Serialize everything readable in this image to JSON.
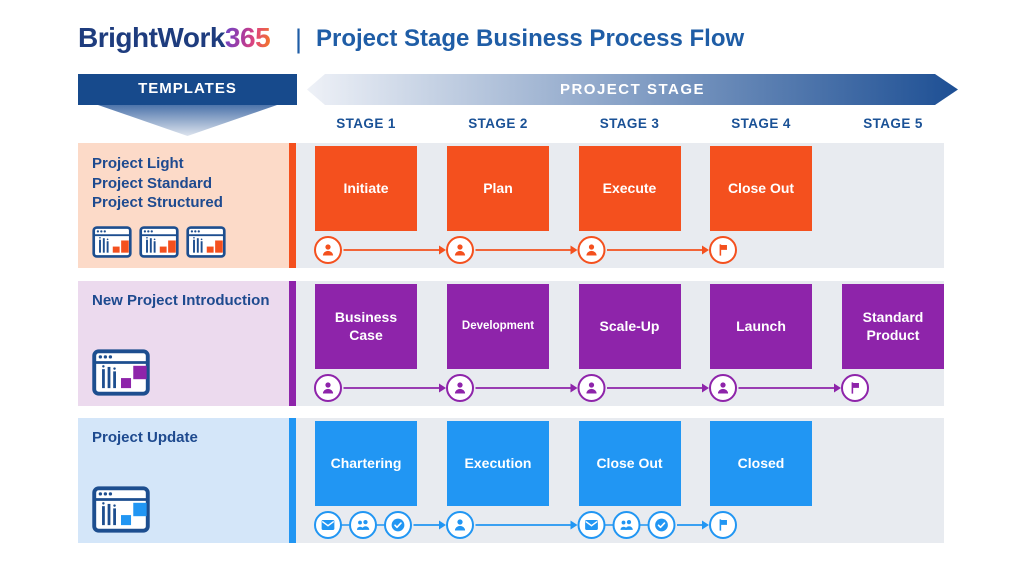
{
  "header": {
    "logo_text": "BrightWork",
    "logo_suffix": "365",
    "divider": "|",
    "title": "Project Stage Business Process Flow"
  },
  "banners": {
    "templates_label": "TEMPLATES",
    "project_stage_label": "PROJECT STAGE"
  },
  "stage_headers": [
    "STAGE 1",
    "STAGE 2",
    "STAGE 3",
    "STAGE 4",
    "STAGE 5"
  ],
  "colors": {
    "navy": "#174a8c",
    "title_blue": "#1f5da6",
    "band_gray": "#e8ebf0",
    "row1_accent": "#f4501e",
    "row1_panel_bg": "#fcdac8",
    "row2_accent": "#8e24aa",
    "row2_panel_bg": "#ecdaee",
    "row3_accent": "#2196f3",
    "row3_panel_bg": "#d4e6f9"
  },
  "rows": [
    {
      "name": "project-templates",
      "panel_lines": [
        "Project Light",
        "Project Standard",
        "Project Structured"
      ],
      "panel_icons": [
        "project-window-icon",
        "project-window-icon",
        "project-window-icon"
      ],
      "accent": "#f4501e",
      "panel_bg": "#fcdac8",
      "boxes": [
        {
          "col": 0,
          "label": "Initiate"
        },
        {
          "col": 1,
          "label": "Plan"
        },
        {
          "col": 2,
          "label": "Execute"
        },
        {
          "col": 3,
          "label": "Close Out"
        }
      ],
      "flow": [
        {
          "col": 0,
          "icons": [
            "person"
          ]
        },
        {
          "col": 1,
          "icons": [
            "person"
          ]
        },
        {
          "col": 2,
          "icons": [
            "person"
          ]
        },
        {
          "col": 3,
          "icons": [
            "flag"
          ]
        }
      ]
    },
    {
      "name": "new-project-introduction",
      "panel_lines": [
        "New Project Introduction"
      ],
      "panel_icons": [
        "project-window-icon"
      ],
      "accent": "#8e24aa",
      "panel_bg": "#ecdaee",
      "boxes": [
        {
          "col": 0,
          "label": "Business Case"
        },
        {
          "col": 1,
          "label": "Development"
        },
        {
          "col": 2,
          "label": "Scale-Up"
        },
        {
          "col": 3,
          "label": "Launch"
        },
        {
          "col": 4,
          "label": "Standard Product"
        }
      ],
      "flow": [
        {
          "col": 0,
          "icons": [
            "person"
          ]
        },
        {
          "col": 1,
          "icons": [
            "person"
          ]
        },
        {
          "col": 2,
          "icons": [
            "person"
          ]
        },
        {
          "col": 3,
          "icons": [
            "person"
          ]
        },
        {
          "col": 4,
          "icons": [
            "flag"
          ]
        }
      ]
    },
    {
      "name": "project-update",
      "panel_lines": [
        "Project Update"
      ],
      "panel_icons": [
        "project-window-icon"
      ],
      "accent": "#2196f3",
      "panel_bg": "#d4e6f9",
      "boxes": [
        {
          "col": 0,
          "label": "Chartering"
        },
        {
          "col": 1,
          "label": "Execution"
        },
        {
          "col": 2,
          "label": "Close Out"
        },
        {
          "col": 3,
          "label": "Closed"
        }
      ],
      "flow": [
        {
          "col": 0,
          "icons": [
            "mail",
            "people",
            "check"
          ]
        },
        {
          "col": 1,
          "icons": [
            "person"
          ]
        },
        {
          "col": 2,
          "icons": [
            "mail",
            "people",
            "check"
          ]
        },
        {
          "col": 3,
          "icons": [
            "flag"
          ]
        }
      ]
    }
  ]
}
